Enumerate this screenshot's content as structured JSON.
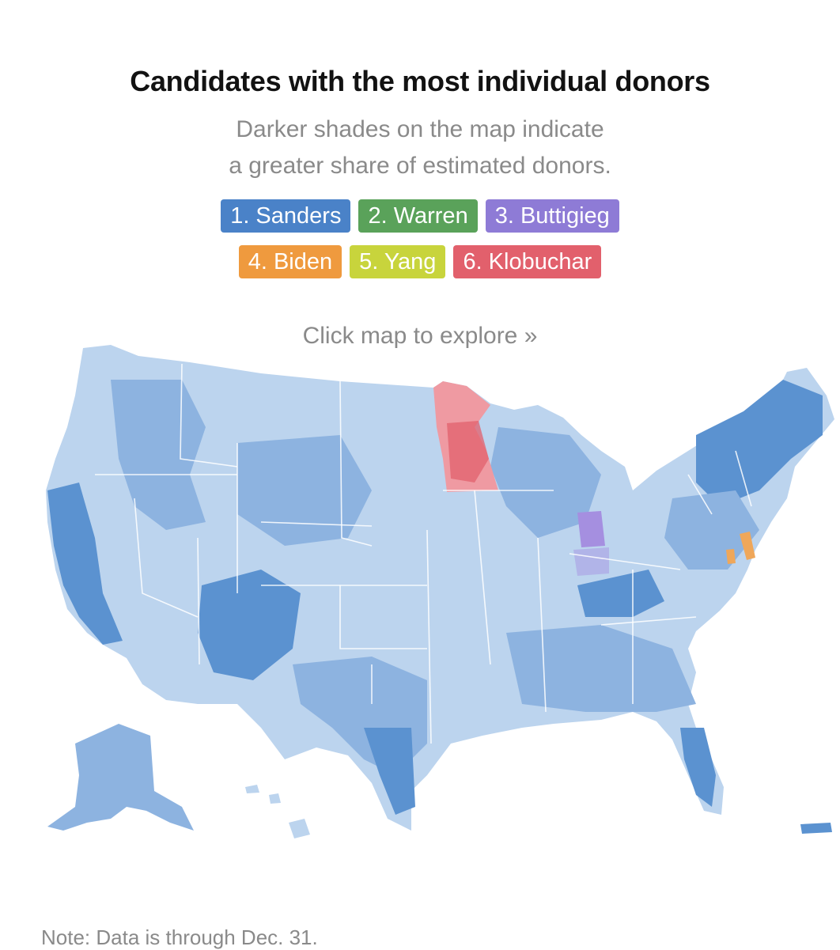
{
  "header": {
    "title": "Candidates with the most individual donors",
    "subtitle_line1": "Darker shades on the map indicate",
    "subtitle_line2": "a greater share of estimated donors."
  },
  "legend": {
    "row1": [
      {
        "label": "1. Sanders",
        "color": "#4a82c8"
      },
      {
        "label": "2. Warren",
        "color": "#5aa25a"
      },
      {
        "label": "3. Buttigieg",
        "color": "#8e7bd6"
      }
    ],
    "row2": [
      {
        "label": "4. Biden",
        "color": "#ef9a3e"
      },
      {
        "label": "5. Yang",
        "color": "#c8d43c"
      },
      {
        "label": "6. Klobuchar",
        "color": "#e2606c"
      }
    ]
  },
  "map": {
    "hint": "Click map to explore »",
    "base_color": "#bcd4ee",
    "mid_color": "#8db3e0",
    "dark_color": "#5b92d0",
    "klobuchar_color": "#ef9aa2",
    "buttigieg_color": "#a58fe0",
    "biden_color": "#efa75a"
  },
  "footer": {
    "note": "Note: Data is through Dec. 31."
  }
}
